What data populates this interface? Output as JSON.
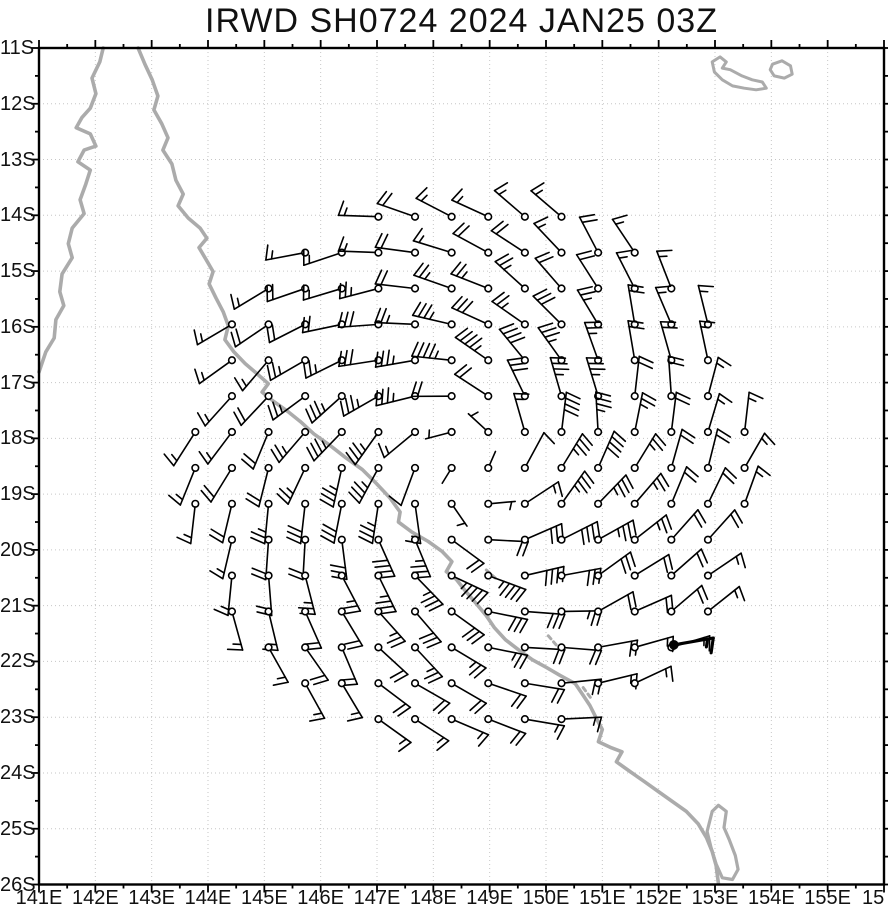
{
  "title": "IRWD SH0724 2024 JAN25 03Z",
  "axes": {
    "x": {
      "labels": [
        "141E",
        "142E",
        "143E",
        "144E",
        "145E",
        "146E",
        "147E",
        "148E",
        "149E",
        "150E",
        "151E",
        "152E",
        "153E",
        "154E",
        "155E"
      ],
      "truncated_last_label": "15",
      "min_lon": 141,
      "max_lon": 156,
      "tick_interval_deg": 1,
      "minor_tick_interval_deg": 0.5
    },
    "y": {
      "labels": [
        "11S",
        "12S",
        "13S",
        "14S",
        "15S",
        "16S",
        "17S",
        "18S",
        "19S",
        "20S",
        "21S",
        "22S",
        "23S",
        "24S",
        "25S",
        "26S"
      ],
      "min_lat": -26,
      "max_lat": -11,
      "tick_interval_deg": 1,
      "minor_tick_interval_deg": 0.5
    }
  },
  "chart_data": {
    "type": "wind-barb-map",
    "title": "IRWD SH0724 2024 JAN25 03Z",
    "extent": {
      "lon": [
        141,
        156
      ],
      "lat": [
        -26,
        -11
      ]
    },
    "grid": "dotted graticule every 1 degree",
    "vortex": {
      "description": "Tropical cyclone wind analysis (IR winds), Southern Hemisphere, clockwise rotation with low-level inflow",
      "center_lon": 148.65,
      "center_lat": -18.53,
      "vmax_kt": 45,
      "radius_max_wind_deg": 1.86,
      "outer_plot_radius_deg": 5.0,
      "inflow_angle_deg": 22,
      "rotation": "clockwise",
      "station_grid_spacing_deg": 0.65,
      "inner_speed_exponent": 2.2,
      "outer_decay_exponent": 1.15
    },
    "barb_convention": {
      "full_barb_kt": 10,
      "half_barb_kt": 5,
      "station_marker": "open circle",
      "staff_points": "upwind",
      "bold_barbs": "sparse bold observations overplotted near the outer core"
    },
    "sample_barbs": [
      {
        "lon": 148.65,
        "lat": -16.7,
        "speed_kt": 45,
        "wind_from": "W"
      },
      {
        "lon": 150.5,
        "lat": -18.5,
        "speed_kt": 45,
        "wind_from": "N"
      },
      {
        "lon": 148.65,
        "lat": -20.4,
        "speed_kt": 45,
        "wind_from": "E"
      },
      {
        "lon": 146.8,
        "lat": -18.5,
        "speed_kt": 45,
        "wind_from": "S"
      },
      {
        "lon": 148.8,
        "lat": -14.1,
        "speed_kt": 15,
        "wind_from": "WNW"
      },
      {
        "lon": 153.3,
        "lat": -18.5,
        "speed_kt": 15,
        "wind_from": "NNE"
      },
      {
        "lon": 148.5,
        "lat": -23.0,
        "speed_kt": 15,
        "wind_from": "ESE"
      },
      {
        "lon": 148.3,
        "lat": -18.5,
        "speed_kt": 2,
        "wind_from": "calm core"
      }
    ],
    "coastline": {
      "color": "#ababab",
      "mainland_west": [
        [
          142.14,
          -11.0
        ],
        [
          142.08,
          -11.25
        ],
        [
          141.94,
          -11.54
        ],
        [
          142.01,
          -11.82
        ],
        [
          141.91,
          -12.08
        ],
        [
          141.76,
          -12.25
        ],
        [
          141.66,
          -12.43
        ],
        [
          141.91,
          -12.54
        ],
        [
          142.01,
          -12.76
        ],
        [
          141.8,
          -12.83
        ],
        [
          141.69,
          -13.04
        ],
        [
          141.91,
          -13.19
        ],
        [
          141.83,
          -13.44
        ],
        [
          141.73,
          -13.72
        ],
        [
          141.8,
          -13.97
        ],
        [
          141.59,
          -14.23
        ],
        [
          141.52,
          -14.51
        ],
        [
          141.59,
          -14.76
        ],
        [
          141.41,
          -15.05
        ],
        [
          141.37,
          -15.37
        ],
        [
          141.44,
          -15.62
        ],
        [
          141.3,
          -15.87
        ],
        [
          141.27,
          -16.2
        ],
        [
          141.12,
          -16.45
        ],
        [
          141.0,
          -16.81
        ]
      ],
      "mainland_east": [
        [
          142.76,
          -11.0
        ],
        [
          142.88,
          -11.29
        ],
        [
          143.01,
          -11.57
        ],
        [
          143.11,
          -11.86
        ],
        [
          143.04,
          -12.11
        ],
        [
          143.18,
          -12.36
        ],
        [
          143.29,
          -12.61
        ],
        [
          143.2,
          -12.83
        ],
        [
          143.36,
          -13.08
        ],
        [
          143.43,
          -13.37
        ],
        [
          143.56,
          -13.62
        ],
        [
          143.47,
          -13.83
        ],
        [
          143.65,
          -14.05
        ],
        [
          143.86,
          -14.23
        ],
        [
          143.98,
          -14.41
        ],
        [
          143.84,
          -14.58
        ],
        [
          143.97,
          -14.8
        ],
        [
          144.09,
          -15.01
        ],
        [
          144.02,
          -15.23
        ],
        [
          144.14,
          -15.48
        ],
        [
          144.27,
          -15.73
        ],
        [
          144.36,
          -15.98
        ],
        [
          144.3,
          -16.23
        ],
        [
          144.46,
          -16.45
        ],
        [
          144.66,
          -16.66
        ],
        [
          144.87,
          -16.84
        ],
        [
          145.07,
          -17.02
        ],
        [
          144.96,
          -17.17
        ],
        [
          145.17,
          -17.34
        ],
        [
          145.42,
          -17.52
        ],
        [
          145.64,
          -17.7
        ],
        [
          145.88,
          -17.92
        ],
        [
          146.17,
          -18.13
        ],
        [
          146.45,
          -18.35
        ],
        [
          146.74,
          -18.56
        ],
        [
          146.99,
          -18.81
        ],
        [
          147.23,
          -19.07
        ],
        [
          147.41,
          -19.32
        ],
        [
          147.38,
          -19.5
        ],
        [
          147.62,
          -19.68
        ],
        [
          147.91,
          -19.85
        ],
        [
          148.16,
          -20.03
        ],
        [
          148.33,
          -20.21
        ],
        [
          148.23,
          -20.39
        ],
        [
          148.41,
          -20.53
        ],
        [
          148.58,
          -20.75
        ],
        [
          148.76,
          -20.96
        ],
        [
          148.94,
          -21.18
        ],
        [
          149.08,
          -21.39
        ],
        [
          149.28,
          -21.61
        ],
        [
          149.51,
          -21.79
        ],
        [
          149.76,
          -21.97
        ],
        [
          150.01,
          -22.11
        ],
        [
          150.25,
          -22.25
        ],
        [
          150.52,
          -22.4
        ],
        [
          150.64,
          -22.58
        ],
        [
          150.78,
          -22.79
        ],
        [
          150.89,
          -23.01
        ],
        [
          151.0,
          -23.22
        ],
        [
          150.93,
          -23.44
        ],
        [
          151.14,
          -23.54
        ],
        [
          151.35,
          -23.62
        ],
        [
          151.25,
          -23.8
        ],
        [
          151.5,
          -23.98
        ],
        [
          151.74,
          -24.15
        ],
        [
          151.99,
          -24.33
        ],
        [
          152.24,
          -24.51
        ],
        [
          152.49,
          -24.69
        ],
        [
          152.7,
          -24.91
        ],
        [
          152.85,
          -25.16
        ],
        [
          152.95,
          -25.41
        ],
        [
          153.02,
          -25.66
        ],
        [
          153.06,
          -25.98
        ]
      ],
      "fraser_island": [
        [
          152.95,
          -24.69
        ],
        [
          153.06,
          -24.58
        ],
        [
          153.2,
          -24.69
        ],
        [
          153.16,
          -24.98
        ],
        [
          153.25,
          -25.19
        ],
        [
          153.36,
          -25.48
        ],
        [
          153.41,
          -25.73
        ],
        [
          153.31,
          -25.91
        ],
        [
          153.13,
          -25.88
        ],
        [
          153.02,
          -25.63
        ],
        [
          152.93,
          -25.34
        ],
        [
          152.86,
          -25.05
        ],
        [
          152.95,
          -24.69
        ]
      ],
      "islands": [
        [
          [
            152.95,
            -11.25
          ],
          [
            153.09,
            -11.16
          ],
          [
            153.2,
            -11.25
          ],
          [
            153.13,
            -11.36
          ],
          [
            153.27,
            -11.39
          ],
          [
            153.48,
            -11.5
          ],
          [
            153.66,
            -11.57
          ],
          [
            153.84,
            -11.61
          ],
          [
            153.91,
            -11.72
          ],
          [
            153.73,
            -11.75
          ],
          [
            153.52,
            -11.72
          ],
          [
            153.31,
            -11.68
          ],
          [
            153.13,
            -11.57
          ],
          [
            152.99,
            -11.43
          ],
          [
            152.95,
            -11.25
          ]
        ],
        [
          [
            154.02,
            -11.29
          ],
          [
            154.19,
            -11.23
          ],
          [
            154.34,
            -11.32
          ],
          [
            154.37,
            -11.47
          ],
          [
            154.23,
            -11.54
          ],
          [
            154.05,
            -11.5
          ],
          [
            153.98,
            -11.39
          ],
          [
            154.02,
            -11.29
          ]
        ]
      ],
      "offshore_dashes": [
        [
          [
            148.94,
            -20.36
          ],
          [
            149.15,
            -20.55
          ]
        ],
        [
          [
            150.04,
            -21.54
          ],
          [
            150.22,
            -21.75
          ]
        ],
        [
          [
            150.66,
            -22.47
          ],
          [
            150.82,
            -22.69
          ]
        ]
      ]
    }
  },
  "style": {
    "background": "#ffffff",
    "barb_color": "#000000",
    "coast_color": "#ababab",
    "grid_color": "#c6c6c6",
    "frame_color": "#000000",
    "text_color": "#111111"
  }
}
